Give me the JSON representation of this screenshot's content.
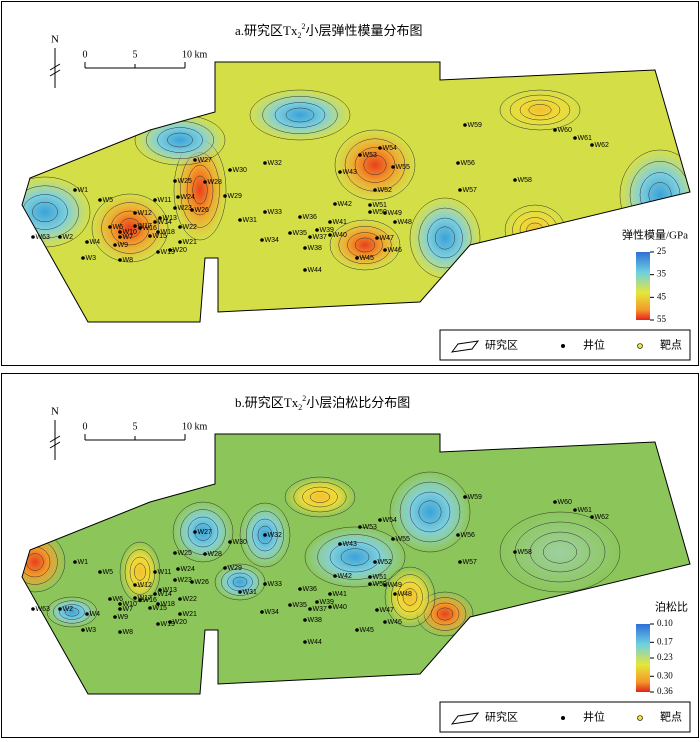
{
  "panels": [
    {
      "title": {
        "prefix": "a.研究区Tx",
        "sub": "2",
        "sup": "2",
        "suffix": "小层弹性模量分布图"
      },
      "colorbar": {
        "title": "弹性模量/GPa",
        "ticks": [
          25,
          35,
          45,
          55
        ]
      }
    },
    {
      "title": {
        "prefix": "b.研究区Tx",
        "sub": "2",
        "sup": "2",
        "suffix": "小层泊松比分布图"
      },
      "colorbar": {
        "title": "泊松比",
        "ticks": [
          {
            "value": 0.1,
            "label": "0.10"
          },
          {
            "value": 0.17,
            "label": "0.17"
          },
          {
            "value": 0.23,
            "label": "0.23"
          },
          {
            "value": 0.3,
            "label": "0.30"
          },
          {
            "value": 0.36,
            "label": "0.36"
          }
        ]
      }
    }
  ],
  "scale": {
    "north": "N",
    "labels": [
      "0",
      "5",
      "10 km"
    ]
  },
  "legend": [
    "研究区",
    "井位",
    "靶点"
  ],
  "wells": [
    "W1",
    "W2",
    "W3",
    "W4",
    "W5",
    "W6",
    "W7",
    "W8",
    "W9",
    "W10",
    "W11",
    "W12",
    "W13",
    "W14",
    "W15",
    "W16",
    "W17",
    "W18",
    "W19",
    "W20",
    "W21",
    "W22",
    "W23",
    "W24",
    "W25",
    "W26",
    "W27",
    "W28",
    "W29",
    "W30",
    "W31",
    "W32",
    "W33",
    "W34",
    "W35",
    "W36",
    "W37",
    "W38",
    "W39",
    "W40",
    "W41",
    "W42",
    "W43",
    "W44",
    "W45",
    "W46",
    "W47",
    "W48",
    "W49",
    "W50",
    "W51",
    "W52",
    "W53",
    "W54",
    "W55",
    "W56",
    "W57",
    "W58",
    "W59",
    "W60",
    "W61",
    "W62",
    "W63"
  ]
}
